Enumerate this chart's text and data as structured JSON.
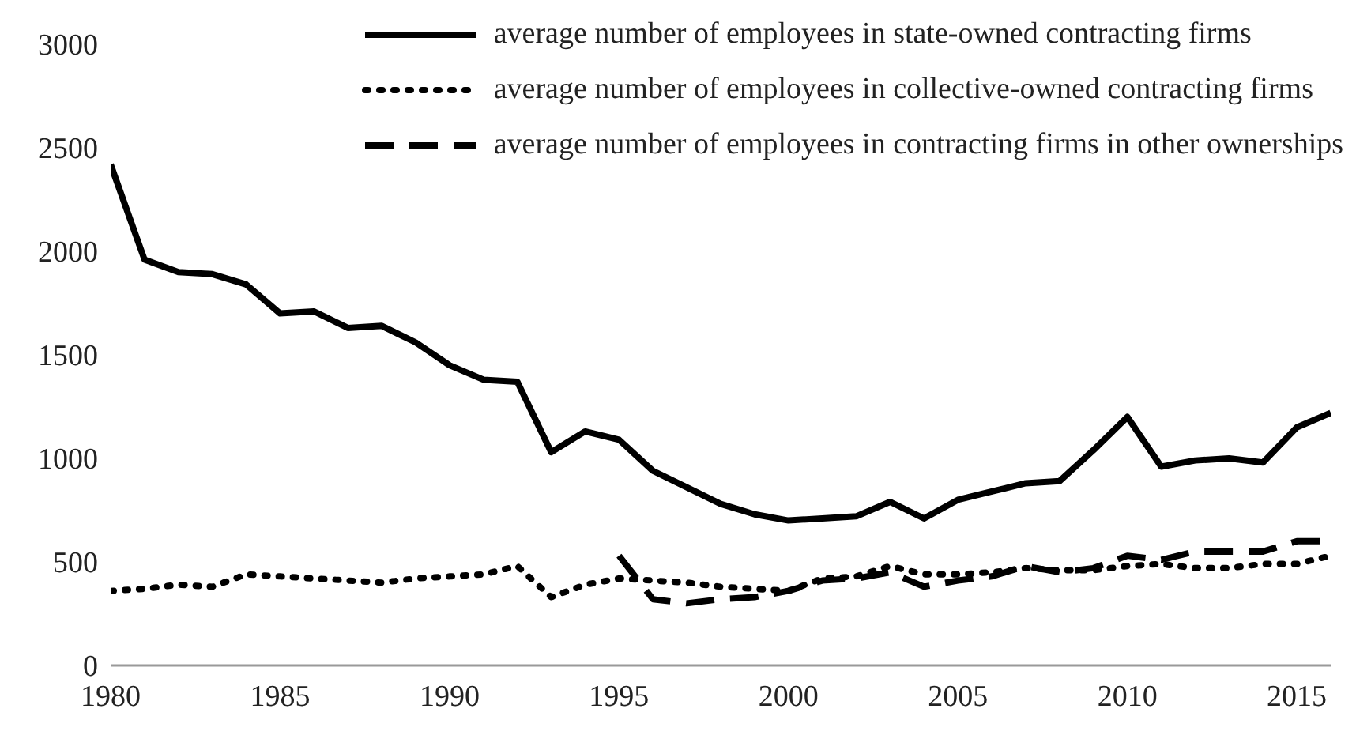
{
  "chart_data": {
    "type": "line",
    "x": [
      1980,
      1981,
      1982,
      1983,
      1984,
      1985,
      1986,
      1987,
      1988,
      1989,
      1990,
      1991,
      1992,
      1993,
      1994,
      1995,
      1996,
      1997,
      1998,
      1999,
      2000,
      2001,
      2002,
      2003,
      2004,
      2005,
      2006,
      2007,
      2008,
      2009,
      2010,
      2011,
      2012,
      2013,
      2014,
      2015,
      2016
    ],
    "series": [
      {
        "name": "average number of employees in state-owned contracting firms",
        "color": "#000000",
        "line_style": "solid",
        "values": [
          2420,
          1960,
          1900,
          1890,
          1840,
          1700,
          1710,
          1630,
          1640,
          1560,
          1450,
          1380,
          1370,
          1030,
          1130,
          1090,
          940,
          860,
          780,
          730,
          700,
          710,
          720,
          790,
          710,
          800,
          840,
          880,
          890,
          1040,
          1200,
          960,
          990,
          1000,
          980,
          1150,
          1220
        ]
      },
      {
        "name": "average number of employees in collective-owned contracting firms",
        "color": "#000000",
        "line_style": "dotted",
        "values": [
          360,
          370,
          390,
          380,
          440,
          430,
          420,
          410,
          400,
          420,
          430,
          440,
          480,
          330,
          390,
          420,
          410,
          400,
          380,
          370,
          360,
          420,
          430,
          480,
          440,
          440,
          450,
          470,
          460,
          460,
          480,
          490,
          470,
          470,
          490,
          490,
          530
        ]
      },
      {
        "name": "average number of employees in contracting firms in other ownerships",
        "color": "#000000",
        "line_style": "dashed",
        "values": [
          null,
          null,
          null,
          null,
          null,
          null,
          null,
          null,
          null,
          null,
          null,
          null,
          null,
          null,
          null,
          530,
          320,
          300,
          320,
          330,
          360,
          410,
          420,
          450,
          380,
          410,
          430,
          480,
          450,
          470,
          530,
          510,
          550,
          550,
          550,
          600,
          600
        ]
      }
    ],
    "xlim": [
      1980,
      2016
    ],
    "xticks": [
      1980,
      1985,
      1990,
      1995,
      2000,
      2005,
      2010,
      2015
    ],
    "ylim": [
      0,
      3000
    ],
    "yticks": [
      0,
      500,
      1000,
      1500,
      2000,
      2500,
      3000
    ],
    "grid": false,
    "legend": "top right",
    "marker": "none"
  }
}
